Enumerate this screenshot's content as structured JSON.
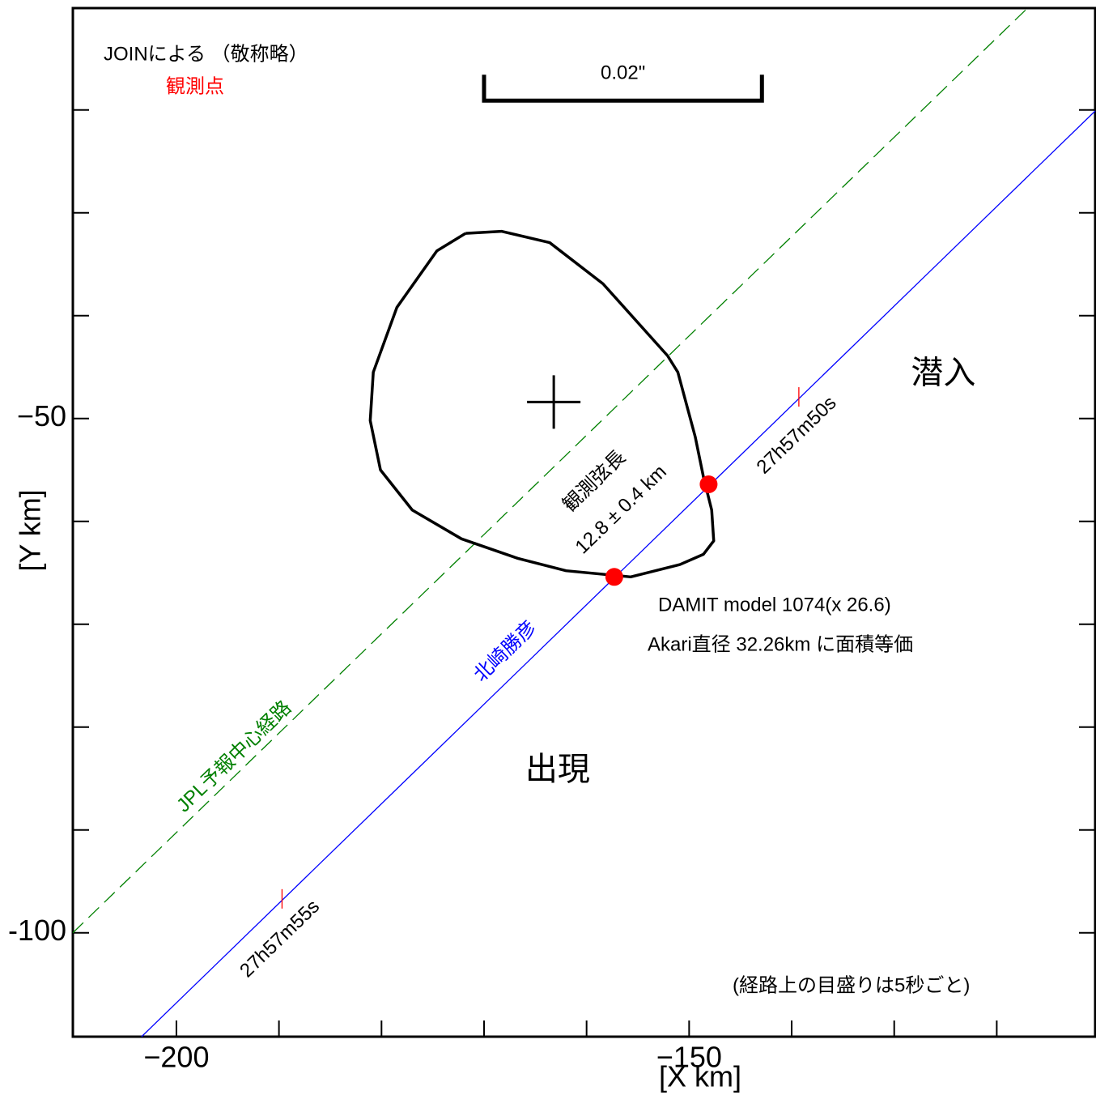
{
  "chart_data": {
    "type": "occultation",
    "header": "JOINによる （敬称略）",
    "observer_heading": "観測点",
    "xlabel": "[X  km]",
    "ylabel": "[Y  km]",
    "xlim": [
      -210.1,
      -110.4
    ],
    "ylim": [
      -110.1,
      -10.1
    ],
    "xticks": [
      {
        "value": -200,
        "label": "−200"
      },
      {
        "value": -150,
        "label": "−150"
      }
    ],
    "yticks": [
      {
        "value": -50,
        "label": "−50"
      },
      -100
    ],
    "xminor": [
      -190,
      -180,
      -170,
      -160,
      -140,
      -130,
      -120
    ],
    "yminor": [
      -20,
      -30,
      -40,
      -60,
      -70,
      -80,
      -90
    ],
    "scale_bar": {
      "label": "0.02\"",
      "x": [
        -170.0,
        -142.9
      ],
      "y": -19.1
    },
    "outline": {
      "x": [
        -171.8,
        -168.3,
        -163.6,
        -158.4,
        -152.1,
        -151.1,
        -149.4,
        -148.6,
        -147.8,
        -147.6,
        -148.6,
        -150.9,
        -155.7,
        -162.0,
        -166.7,
        -172.2,
        -177.0,
        -180.1,
        -181.1,
        -180.8,
        -178.5,
        -174.6,
        -171.8
      ],
      "y": [
        -32.0,
        -31.8,
        -32.9,
        -36.9,
        -43.9,
        -45.5,
        -51.8,
        -55.7,
        -58.9,
        -61.9,
        -63.2,
        -64.2,
        -65.4,
        -64.8,
        -63.6,
        -61.7,
        -58.9,
        -55.0,
        -50.2,
        -45.5,
        -39.2,
        -33.7,
        -32.0
      ]
    },
    "center": {
      "x": -163.2,
      "y": -48.4
    },
    "paths": [
      {
        "name": "北崎勝彦",
        "color": "#0000ff",
        "dashed": false,
        "x": [
          -203.4,
          -110.4
        ],
        "y": [
          -110.1,
          -20.1
        ]
      },
      {
        "name": "JPL予報中心経路",
        "color": "#008000",
        "dashed": true,
        "x": [
          -210.1,
          -117.0
        ],
        "y": [
          -100.0,
          -10.1
        ]
      }
    ],
    "events": [
      {
        "name": "潜入",
        "color": "#ff0000",
        "x": -148.1,
        "y": -56.4
      },
      {
        "name": "出現",
        "color": "#ff0000",
        "x": -157.3,
        "y": -65.4
      }
    ],
    "time_ticks": [
      {
        "label": "27h57m50s",
        "color": "#ff0000",
        "x": -139.3,
        "y": -47.9
      },
      {
        "label": "27h57m55s",
        "color": "#ff0000",
        "x": -189.7,
        "y": -96.7
      }
    ],
    "chord_label": "観測弦長",
    "chord_value": "12.8 ± 0.4 km",
    "model_note": "DAMIT model 1074(x 26.6)",
    "area_note": "Akari直径 32.26km に面積等価",
    "tick_note": "(経路上の目盛りは5秒ごと)"
  }
}
